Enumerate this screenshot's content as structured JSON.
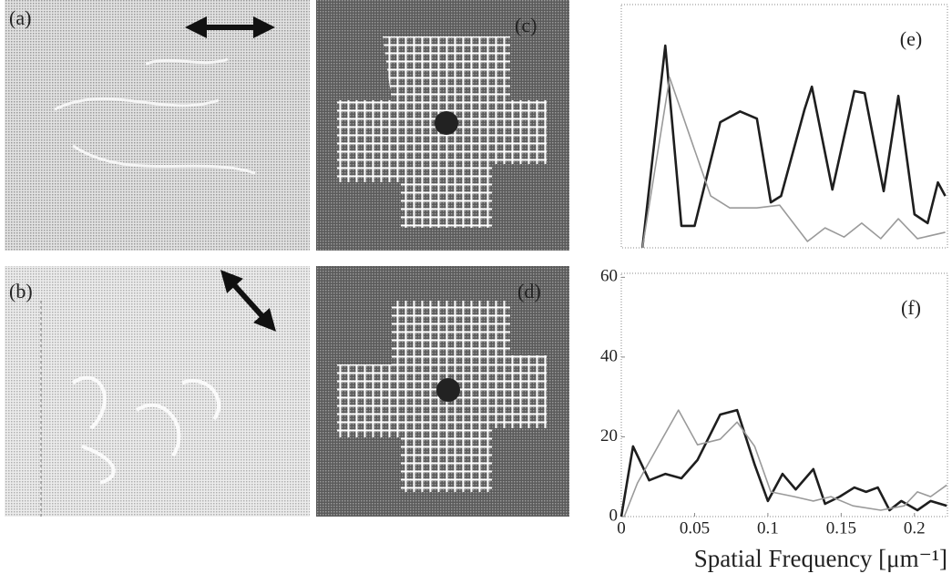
{
  "panels": [
    "(a)",
    "(b)",
    "(c)",
    "(d)"
  ],
  "chart_data": [
    {
      "type": "line",
      "label": "(e)",
      "xlim": [
        0,
        0.2225
      ],
      "ylim": [
        0,
        61
      ],
      "series": [
        {
          "color": "#1e1e1e",
          "x": [
            0.0144,
            0.03,
            0.041,
            0.05,
            0.0675,
            0.081,
            0.0925,
            0.102,
            0.109,
            0.125,
            0.13,
            0.144,
            0.152,
            0.159,
            0.166,
            0.179,
            0.189,
            0.2,
            0.209,
            0.216,
            0.221
          ],
          "values": [
            0,
            50.7,
            5.5,
            5.5,
            31.5,
            34.2,
            32.4,
            11.4,
            13,
            34.7,
            40.4,
            14.6,
            27.9,
            39.3,
            38.8,
            14.2,
            38.1,
            8.4,
            6.2,
            16.4,
            13
          ]
        },
        {
          "color": "#9a9a9a",
          "x": [
            0.0144,
            0.033,
            0.049,
            0.061,
            0.074,
            0.0925,
            0.108,
            0.127,
            0.139,
            0.152,
            0.164,
            0.177,
            0.189,
            0.202,
            0.221
          ],
          "values": [
            0,
            42.7,
            25.6,
            13,
            10,
            10,
            10.7,
            1.6,
            5,
            2.7,
            6.2,
            2.3,
            7.3,
            2.3,
            3.9
          ]
        }
      ]
    },
    {
      "type": "line",
      "label": "(f)",
      "xlabel": "Spatial Frequency [μm⁻¹]",
      "xlim": [
        0,
        0.2225
      ],
      "ylim": [
        0,
        61
      ],
      "xticks": [
        0,
        0.05,
        0.1,
        0.15,
        0.2
      ],
      "yticks": [
        0,
        20,
        40,
        60
      ],
      "series": [
        {
          "color": "#1e1e1e",
          "x": [
            0,
            0.008,
            0.019,
            0.03,
            0.041,
            0.052,
            0.0675,
            0.079,
            0.091,
            0.1,
            0.11,
            0.119,
            0.131,
            0.139,
            0.149,
            0.159,
            0.167,
            0.175,
            0.183,
            0.191,
            0.202,
            0.211,
            0.222
          ],
          "values": [
            0,
            17.6,
            9.1,
            10.7,
            9.6,
            14.2,
            25.6,
            26.7,
            13,
            3.9,
            10.7,
            6.8,
            11.9,
            3.2,
            5,
            7.3,
            6.2,
            7.3,
            1.6,
            3.9,
            1.6,
            3.9,
            2.7
          ]
        },
        {
          "color": "#9a9a9a",
          "x": [
            0.002,
            0.011,
            0.025,
            0.039,
            0.052,
            0.0675,
            0.079,
            0.091,
            0.102,
            0.118,
            0.131,
            0.143,
            0.158,
            0.177,
            0.193,
            0.202,
            0.211,
            0.222
          ],
          "values": [
            0,
            8.4,
            17.6,
            26.7,
            18,
            19.4,
            23.7,
            17.6,
            6.2,
            5,
            3.9,
            5,
            2.7,
            1.6,
            2.7,
            6.2,
            5,
            7.9
          ]
        }
      ]
    }
  ]
}
